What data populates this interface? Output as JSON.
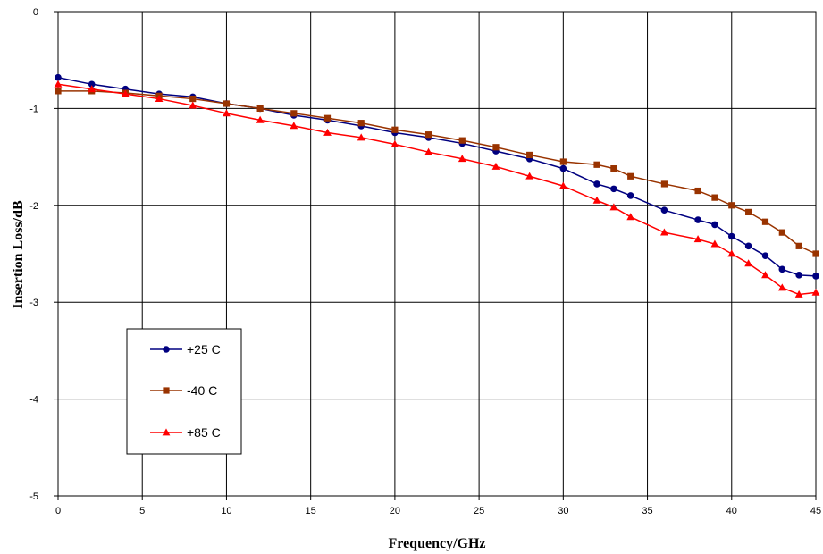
{
  "chart_data": {
    "type": "line",
    "title": "",
    "xlabel": "Frequency/GHz",
    "ylabel": "Insertion Loss/dB",
    "xlim": [
      0,
      45
    ],
    "ylim": [
      -5,
      0
    ],
    "xticks": [
      0,
      5,
      10,
      15,
      20,
      25,
      30,
      35,
      40,
      45
    ],
    "xtick_labels": [
      "0",
      "5",
      "10",
      "15",
      "20",
      "25",
      "30",
      "35",
      "40",
      "45"
    ],
    "yticks": [
      0,
      -1,
      -2,
      -3,
      -4,
      -5
    ],
    "ytick_labels": [
      "0",
      "-1",
      "-2",
      "-3",
      "-4",
      "-5"
    ],
    "grid": true,
    "legend_position": "lower-left",
    "series": [
      {
        "name": "+25 C",
        "color": "#000080",
        "marker": "circle",
        "x": [
          0,
          2,
          4,
          6,
          8,
          10,
          12,
          14,
          16,
          18,
          20,
          22,
          24,
          26,
          28,
          30,
          32,
          33,
          34,
          36,
          38,
          39,
          40,
          41,
          42,
          43,
          44,
          45
        ],
        "y": [
          -0.68,
          -0.75,
          -0.8,
          -0.85,
          -0.88,
          -0.95,
          -1.0,
          -1.07,
          -1.12,
          -1.18,
          -1.25,
          -1.3,
          -1.36,
          -1.44,
          -1.52,
          -1.62,
          -1.78,
          -1.83,
          -1.9,
          -2.05,
          -2.15,
          -2.2,
          -2.32,
          -2.42,
          -2.52,
          -2.66,
          -2.72,
          -2.73
        ]
      },
      {
        "name": "-40 C",
        "color": "#993300",
        "marker": "square",
        "x": [
          0,
          2,
          4,
          6,
          8,
          10,
          12,
          14,
          16,
          18,
          20,
          22,
          24,
          26,
          28,
          30,
          32,
          33,
          34,
          36,
          38,
          39,
          40,
          41,
          42,
          43,
          44,
          45
        ],
        "y": [
          -0.82,
          -0.82,
          -0.84,
          -0.87,
          -0.9,
          -0.95,
          -1.0,
          -1.05,
          -1.1,
          -1.15,
          -1.22,
          -1.27,
          -1.33,
          -1.4,
          -1.48,
          -1.55,
          -1.58,
          -1.62,
          -1.7,
          -1.78,
          -1.85,
          -1.92,
          -2.0,
          -2.07,
          -2.17,
          -2.28,
          -2.42,
          -2.5
        ]
      },
      {
        "name": "+85 C",
        "color": "#ff0000",
        "marker": "triangle",
        "x": [
          0,
          2,
          4,
          6,
          8,
          10,
          12,
          14,
          16,
          18,
          20,
          22,
          24,
          26,
          28,
          30,
          32,
          33,
          34,
          36,
          38,
          39,
          40,
          41,
          42,
          43,
          44,
          45
        ],
        "y": [
          -0.75,
          -0.8,
          -0.85,
          -0.9,
          -0.97,
          -1.05,
          -1.12,
          -1.18,
          -1.25,
          -1.3,
          -1.37,
          -1.45,
          -1.52,
          -1.6,
          -1.7,
          -1.8,
          -1.95,
          -2.02,
          -2.12,
          -2.28,
          -2.35,
          -2.4,
          -2.5,
          -2.6,
          -2.72,
          -2.85,
          -2.92,
          -2.9
        ]
      }
    ]
  }
}
